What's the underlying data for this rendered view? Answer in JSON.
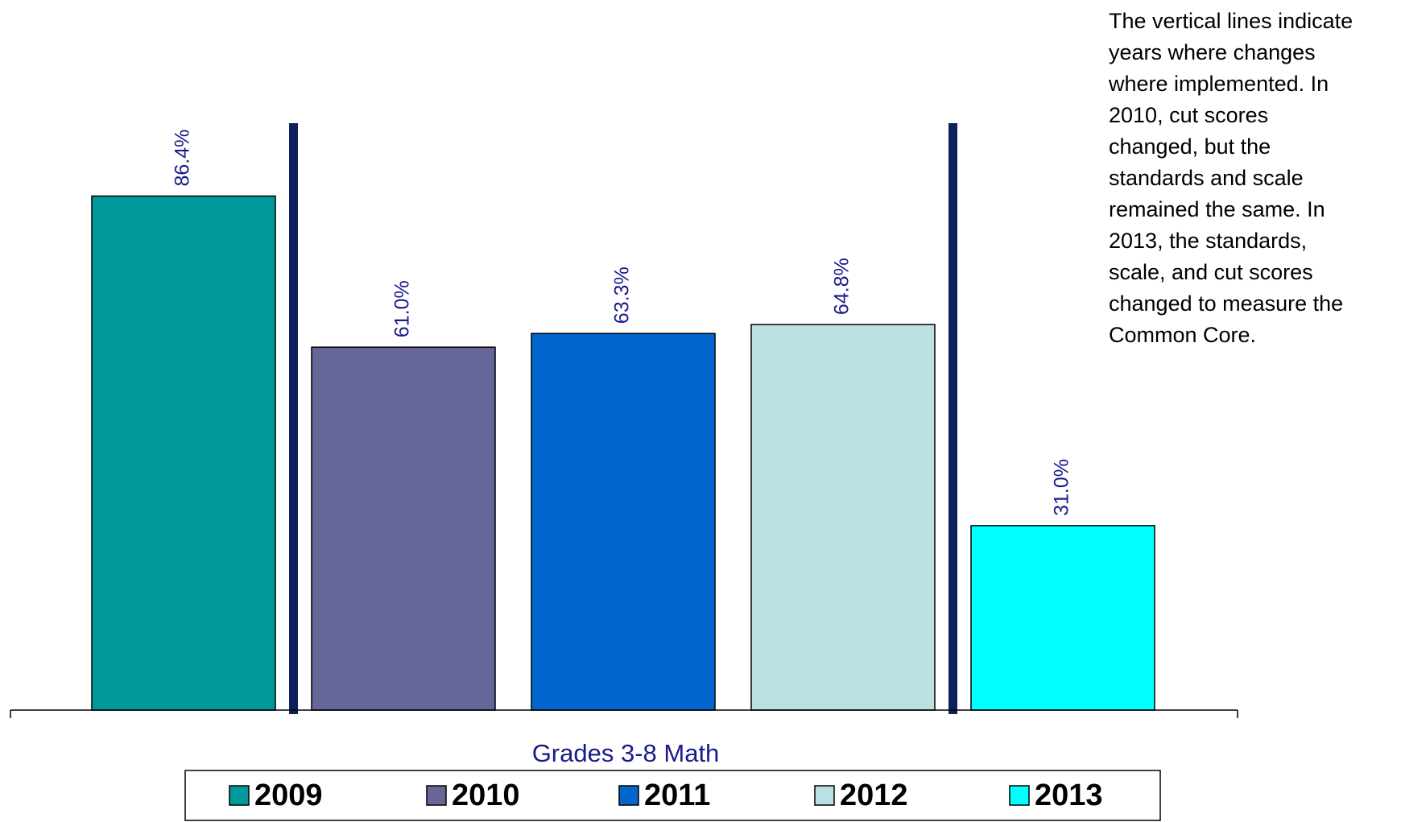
{
  "chart_data": {
    "type": "bar",
    "categories": [
      "Grades 3-8 Math"
    ],
    "series": [
      {
        "name": "2009",
        "color": "#009999",
        "values": [
          86.4
        ],
        "value_labels": [
          "86.4%"
        ]
      },
      {
        "name": "2010",
        "color": "#666699",
        "values": [
          61.0
        ],
        "value_labels": [
          "61.0%"
        ]
      },
      {
        "name": "2011",
        "color": "#0066cc",
        "values": [
          63.3
        ],
        "value_labels": [
          "63.3%"
        ]
      },
      {
        "name": "2012",
        "color": "#bbe0e3",
        "values": [
          64.8
        ],
        "value_labels": [
          "64.8%"
        ]
      },
      {
        "name": "2013",
        "color": "#00ffff",
        "values": [
          31.0
        ],
        "value_labels": [
          "31.0%"
        ]
      }
    ],
    "ylim": [
      0,
      100
    ],
    "legend": "bottom",
    "annotation": [
      "The vertical lines indicate",
      "years where changes",
      "where implemented.  In",
      "2010, cut scores",
      "changed, but the",
      "standards and scale",
      "remained the same.  In",
      "2013, the standards,",
      "scale, and cut scores",
      "changed to measure the",
      "Common Core."
    ]
  }
}
